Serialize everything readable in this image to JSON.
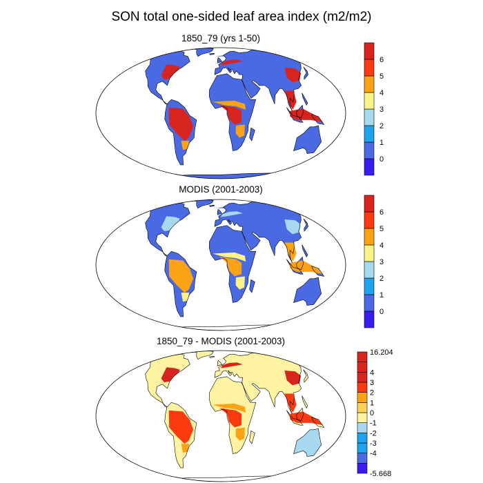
{
  "title": "SON total one-sided leaf area index (m2/m2)",
  "colors": {
    "ocean": "#ffffff",
    "coast": "#000000",
    "lai_levels": [
      "#3a1cf0",
      "#4a6ae4",
      "#1fa3ee",
      "#a6d8f0",
      "#fbf288",
      "#fca315",
      "#fa3a0f",
      "#d8241e"
    ],
    "diff_levels": [
      "#3a1cf0",
      "#4a6ae4",
      "#1fa3ee",
      "#a6d8f0",
      "#fdf3a0",
      "#fcd258",
      "#fca315",
      "#fa3a0f",
      "#d8241e"
    ]
  },
  "panels": [
    {
      "id": "p1",
      "title": "1850_79 (yrs 1-50)",
      "colorbar": {
        "labels": [
          "0",
          "1",
          "2",
          "3",
          "4",
          "5",
          "6"
        ]
      },
      "palette": {
        "boreal": "#4a6ae4",
        "temperate": "#d8241e",
        "tropics": "#d8241e",
        "dry": "#4a6ae4",
        "desert": "#4a6ae4",
        "antarctica": "#4a6ae4",
        "greenland": "#4a6ae4",
        "australia": "#4a6ae4",
        "mixed": "#fca315"
      }
    },
    {
      "id": "p2",
      "title": "MODIS (2001-2003)",
      "colorbar": {
        "labels": [
          "0",
          "1",
          "2",
          "3",
          "4",
          "5",
          "6"
        ]
      },
      "palette": {
        "boreal": "#4a6ae4",
        "temperate": "#a6d8f0",
        "tropics": "#fca315",
        "dry": "#4a6ae4",
        "desert": "#4a6ae4",
        "antarctica": "#ffffff",
        "greenland": "#4a6ae4",
        "australia": "#4a6ae4",
        "mixed": "#fbf288"
      }
    },
    {
      "id": "p3",
      "title": "1850_79 - MODIS (2001-2003)",
      "colorbar": {
        "labels": [
          "-5.668",
          "-4",
          "-3",
          "-2",
          "-1",
          "0",
          "1",
          "2",
          "3",
          "4",
          "16.204"
        ]
      },
      "palette": {
        "boreal": "#fdf3a0",
        "temperate": "#d8241e",
        "tropics": "#fa3a0f",
        "dry": "#fdf3a0",
        "desert": "#fdf3a0",
        "antarctica": "#ffffff",
        "greenland": "#fdf3a0",
        "australia": "#a6d8f0",
        "mixed": "#fca315"
      }
    }
  ]
}
